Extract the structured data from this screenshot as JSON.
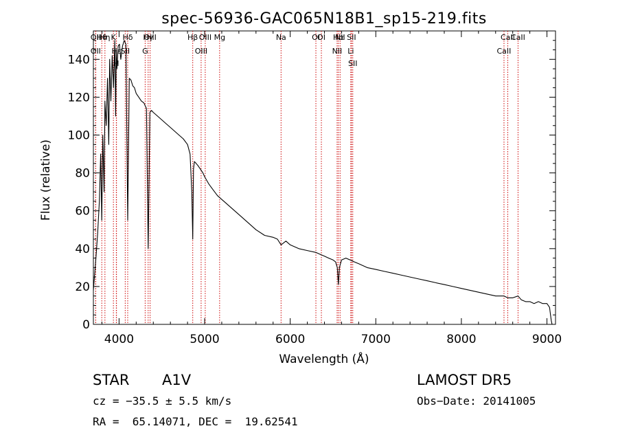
{
  "chart_data": {
    "type": "line",
    "title": "spec-56936-GAC065N18B1_sp15-219.fits",
    "xlabel": "Wavelength (Å)",
    "ylabel": "Flux (relative)",
    "xlim": [
      3700,
      9100
    ],
    "ylim": [
      0,
      155
    ],
    "xticks": [
      4000,
      5000,
      6000,
      7000,
      8000,
      9000
    ],
    "yticks": [
      0,
      20,
      40,
      60,
      80,
      100,
      120,
      140
    ],
    "grid": false,
    "series": [
      {
        "x": [
          3700,
          3730,
          3750,
          3770,
          3785,
          3798,
          3810,
          3825,
          3835,
          3850,
          3865,
          3880,
          3890,
          3905,
          3920,
          3935,
          3950,
          3960,
          3968,
          3975,
          3990,
          4005,
          4020,
          4040,
          4060,
          4080,
          4101,
          4120,
          4140,
          4160,
          4180,
          4200,
          4230,
          4260,
          4290,
          4320,
          4340,
          4360,
          4380,
          4400,
          4450,
          4500,
          4550,
          4600,
          4650,
          4700,
          4750,
          4800,
          4830,
          4850,
          4861,
          4870,
          4880,
          4900,
          4920,
          4950,
          4980,
          5000,
          5050,
          5100,
          5150,
          5200,
          5250,
          5300,
          5400,
          5500,
          5600,
          5700,
          5800,
          5850,
          5893,
          5950,
          6000,
          6100,
          6200,
          6300,
          6350,
          6400,
          6450,
          6500,
          6530,
          6550,
          6563,
          6575,
          6600,
          6650,
          6700,
          6750,
          6800,
          6900,
          7000,
          7100,
          7200,
          7300,
          7400,
          7500,
          7600,
          7700,
          7800,
          7900,
          8000,
          8100,
          8200,
          8300,
          8400,
          8498,
          8542,
          8600,
          8662,
          8700,
          8750,
          8800,
          8850,
          8900,
          8950,
          9000,
          9030,
          9050,
          9060
        ],
        "values": [
          18,
          35,
          48,
          65,
          90,
          55,
          100,
          70,
          118,
          105,
          130,
          95,
          140,
          118,
          142,
          125,
          150,
          110,
          145,
          135,
          147,
          148,
          140,
          147,
          150,
          148,
          55,
          130,
          129,
          126,
          125,
          122,
          120,
          118,
          117,
          114,
          40,
          112,
          113,
          112,
          110,
          108,
          106,
          104,
          102,
          100,
          98,
          95,
          90,
          70,
          45,
          82,
          86,
          85,
          84,
          82,
          80,
          78,
          74,
          71,
          68,
          66,
          64,
          62,
          58,
          54,
          50,
          47,
          46,
          45,
          42,
          44,
          42,
          40,
          39,
          38,
          37,
          36,
          35,
          34,
          33,
          30,
          21,
          30,
          34,
          35,
          34,
          33,
          32,
          30,
          29,
          28,
          27,
          26,
          25,
          24,
          23,
          22,
          21,
          20,
          19,
          18,
          17,
          16,
          15,
          15,
          14,
          14,
          15,
          13,
          12,
          12,
          11,
          12,
          11,
          11,
          9,
          2,
          0
        ]
      }
    ],
    "lines": [
      {
        "label": "Hθ",
        "x": 3798
      },
      {
        "label": "OII",
        "x": 3727
      },
      {
        "label": "OII",
        "x": 3727
      },
      {
        "label": "Hη",
        "x": 3835
      },
      {
        "label": "K",
        "x": 3934
      },
      {
        "label": "Hε",
        "x": 3970
      },
      {
        "label": "H",
        "x": 3968
      },
      {
        "label": "Hδ",
        "x": 4101
      },
      {
        "label": "SII",
        "x": 4072
      },
      {
        "label": "OIII",
        "x": 4363
      },
      {
        "label": "Hγ",
        "x": 4340
      },
      {
        "label": "G",
        "x": 4305
      },
      {
        "label": "OIII",
        "x": 5007
      },
      {
        "label": "OIII",
        "x": 4959
      },
      {
        "label": "Hβ",
        "x": 4861
      },
      {
        "label": "Mg",
        "x": 5175
      },
      {
        "label": "Na",
        "x": 5893
      },
      {
        "label": "OI",
        "x": 6300
      },
      {
        "label": "OI",
        "x": 6364
      },
      {
        "label": "Hα",
        "x": 6563
      },
      {
        "label": "NII",
        "x": 6548
      },
      {
        "label": "NII",
        "x": 6583
      },
      {
        "label": "SII",
        "x": 6716
      },
      {
        "label": "Li",
        "x": 6708
      },
      {
        "label": "SII",
        "x": 6731
      },
      {
        "label": "CaII",
        "x": 8542
      },
      {
        "label": "CaII",
        "x": 8498
      },
      {
        "label": "CaII",
        "x": 8662
      }
    ],
    "line_color": "#cc0000"
  },
  "info": {
    "class": "STAR",
    "subclass": "A1V",
    "survey": "LAMOST DR5",
    "cz": "cz = −35.5 ± 5.5 km/s",
    "obs_date": "Obs−Date: 20141005",
    "coords": "RA =  65.14071, DEC =  19.62541"
  }
}
